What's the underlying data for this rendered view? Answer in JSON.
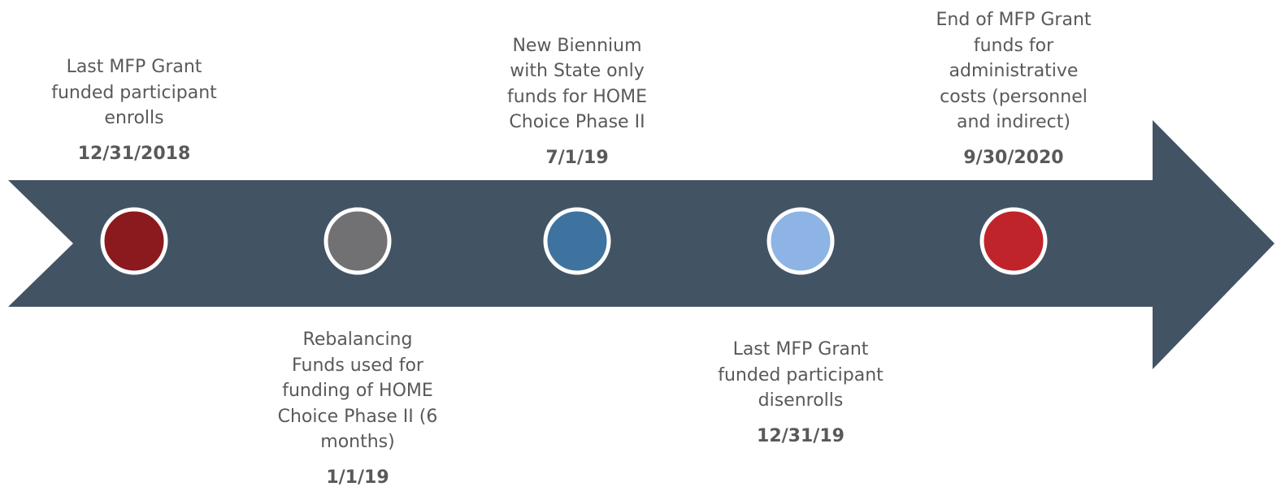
{
  "events": [
    {
      "lines": [
        "Last MFP Grant",
        "funded participant",
        "enrolls"
      ],
      "date": "12/31/2018"
    },
    {
      "lines": [
        "Rebalancing",
        "Funds used for",
        "funding of HOME",
        "Choice Phase II (6",
        "months)"
      ],
      "date": "1/1/19"
    },
    {
      "lines": [
        "New Biennium",
        "with State only",
        "funds for HOME",
        "Choice Phase II"
      ],
      "date": "7/1/19"
    },
    {
      "lines": [
        "Last MFP Grant",
        "funded participant",
        "disenrolls"
      ],
      "date": "12/31/19"
    },
    {
      "lines": [
        "End of MFP Grant",
        "funds for",
        "administrative",
        "costs (personnel",
        "and indirect)"
      ],
      "date": "9/30/2020"
    }
  ]
}
